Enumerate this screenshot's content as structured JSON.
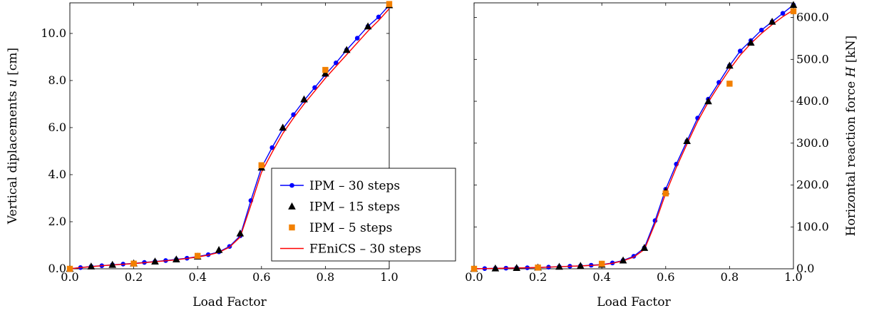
{
  "chart_data": [
    {
      "type": "line",
      "xlabel": "Load Factor",
      "ylabel": "Vertical diplacements u [cm]",
      "ylabel_parts": {
        "prefix": "Vertical diplacements ",
        "var": "u",
        "unit": " [cm]"
      },
      "xlim": [
        0.0,
        1.0
      ],
      "ylim": [
        0.0,
        11.3
      ],
      "xticks": [
        "0.0",
        "0.2",
        "0.4",
        "0.6",
        "0.8",
        "1.0"
      ],
      "xtick_values": [
        0.0,
        0.2,
        0.4,
        0.6,
        0.8,
        1.0
      ],
      "yticks": [
        "0.0",
        "2.0",
        "4.0",
        "6.0",
        "8.0",
        "10.0"
      ],
      "ytick_values": [
        0.0,
        2.0,
        4.0,
        6.0,
        8.0,
        10.0
      ],
      "yaxis_side": "left",
      "grid": false,
      "legend_position": "lower-right",
      "legend": [
        {
          "label": "IPM – 30 steps",
          "color": "#0000ff",
          "marker": "circle",
          "line": true
        },
        {
          "label": "IPM – 15 steps",
          "color": "#000000",
          "marker": "triangle",
          "line": false
        },
        {
          "label": "IPM – 5 steps",
          "color": "#f28000",
          "marker": "square",
          "line": false
        },
        {
          "label": "FEniCS – 30 steps",
          "color": "#ff0000",
          "marker": "none",
          "line": true
        }
      ],
      "series": [
        {
          "name": "IPM – 30 steps",
          "color": "#0000ff",
          "marker": "circle",
          "line": true,
          "x": [
            0.0,
            0.0333,
            0.0667,
            0.1,
            0.1333,
            0.1667,
            0.2,
            0.2333,
            0.2667,
            0.3,
            0.3333,
            0.3667,
            0.4,
            0.4333,
            0.4667,
            0.5,
            0.5333,
            0.5667,
            0.6,
            0.6333,
            0.6667,
            0.7,
            0.7333,
            0.7667,
            0.8,
            0.8333,
            0.8667,
            0.9,
            0.9333,
            0.9667,
            1.0
          ],
          "y": [
            0.0,
            0.05,
            0.1,
            0.13,
            0.17,
            0.2,
            0.23,
            0.27,
            0.31,
            0.35,
            0.4,
            0.45,
            0.52,
            0.6,
            0.72,
            0.95,
            1.4,
            2.9,
            4.3,
            5.15,
            5.95,
            6.55,
            7.15,
            7.7,
            8.25,
            8.75,
            9.3,
            9.8,
            10.3,
            10.7,
            11.2
          ]
        },
        {
          "name": "IPM – 15 steps",
          "color": "#000000",
          "marker": "triangle",
          "line": false,
          "x": [
            0.0,
            0.0667,
            0.1333,
            0.2,
            0.2667,
            0.3333,
            0.4,
            0.4667,
            0.5333,
            0.6,
            0.6667,
            0.7333,
            0.8,
            0.8667,
            0.9333,
            1.0
          ],
          "y": [
            0.0,
            0.1,
            0.17,
            0.23,
            0.31,
            0.4,
            0.52,
            0.8,
            1.5,
            4.3,
            6.0,
            7.2,
            8.3,
            9.3,
            10.3,
            11.2
          ]
        },
        {
          "name": "IPM – 5 steps",
          "color": "#f28000",
          "marker": "square",
          "line": false,
          "x": [
            0.0,
            0.2,
            0.4,
            0.6,
            0.8,
            1.0
          ],
          "y": [
            0.0,
            0.22,
            0.55,
            4.4,
            8.45,
            11.25
          ]
        },
        {
          "name": "FEniCS – 30 steps",
          "color": "#ff0000",
          "marker": "none",
          "line": true,
          "x": [
            0.0,
            0.0333,
            0.0667,
            0.1,
            0.1333,
            0.1667,
            0.2,
            0.2333,
            0.2667,
            0.3,
            0.3333,
            0.3667,
            0.4,
            0.4333,
            0.4667,
            0.5,
            0.5333,
            0.5667,
            0.6,
            0.6333,
            0.6667,
            0.7,
            0.7333,
            0.7667,
            0.8,
            0.8333,
            0.8667,
            0.9,
            0.9333,
            0.9667,
            1.0
          ],
          "y": [
            0.0,
            0.05,
            0.09,
            0.13,
            0.16,
            0.19,
            0.22,
            0.26,
            0.3,
            0.34,
            0.38,
            0.44,
            0.5,
            0.58,
            0.7,
            0.92,
            1.35,
            2.7,
            4.1,
            4.95,
            5.75,
            6.4,
            7.0,
            7.55,
            8.1,
            8.6,
            9.1,
            9.6,
            10.1,
            10.55,
            11.05
          ]
        }
      ]
    },
    {
      "type": "line",
      "xlabel": "Load Factor",
      "ylabel": "Horizontal reaction force H [kN]",
      "ylabel_parts": {
        "prefix": "Horizontal reaction force ",
        "var": "H",
        "unit": " [kN]"
      },
      "xlim": [
        0.0,
        1.0
      ],
      "ylim": [
        0.0,
        635.0
      ],
      "xticks": [
        "0.0",
        "0.2",
        "0.4",
        "0.6",
        "0.8",
        "1.0"
      ],
      "xtick_values": [
        0.0,
        0.2,
        0.4,
        0.6,
        0.8,
        1.0
      ],
      "yticks": [
        "0.0",
        "100.0",
        "200.0",
        "300.0",
        "400.0",
        "500.0",
        "600.0"
      ],
      "ytick_values": [
        0.0,
        100.0,
        200.0,
        300.0,
        400.0,
        500.0,
        600.0
      ],
      "yaxis_side": "right",
      "grid": false,
      "series": [
        {
          "name": "IPM – 30 steps",
          "color": "#0000ff",
          "marker": "circle",
          "line": true,
          "x": [
            0.0,
            0.0333,
            0.0667,
            0.1,
            0.1333,
            0.1667,
            0.2,
            0.2333,
            0.2667,
            0.3,
            0.3333,
            0.3667,
            0.4,
            0.4333,
            0.4667,
            0.5,
            0.5333,
            0.5667,
            0.6,
            0.6333,
            0.6667,
            0.7,
            0.7333,
            0.7667,
            0.8,
            0.8333,
            0.8667,
            0.9,
            0.9333,
            0.9667,
            1.0
          ],
          "y": [
            0.0,
            0.5,
            1.0,
            1.5,
            2.0,
            2.5,
            3.0,
            4.0,
            5.0,
            6.0,
            7.0,
            8.5,
            10.0,
            14.0,
            20.0,
            30.0,
            50.0,
            115.0,
            190.0,
            250.0,
            305.0,
            360.0,
            405.0,
            445.0,
            485.0,
            520.0,
            545.0,
            570.0,
            590.0,
            610.0,
            630.0
          ]
        },
        {
          "name": "IPM – 15 steps",
          "color": "#000000",
          "marker": "triangle",
          "line": false,
          "x": [
            0.0,
            0.0667,
            0.1333,
            0.2,
            0.2667,
            0.3333,
            0.4,
            0.4667,
            0.5333,
            0.6,
            0.6667,
            0.7333,
            0.8,
            0.8667,
            0.9333,
            1.0
          ],
          "y": [
            0.0,
            1.0,
            2.0,
            3.0,
            5.0,
            7.0,
            10.0,
            20.0,
            50.0,
            185.0,
            305.0,
            400.0,
            485.0,
            540.0,
            590.0,
            630.0
          ]
        },
        {
          "name": "IPM – 5 steps",
          "color": "#f28000",
          "marker": "square",
          "line": false,
          "x": [
            0.0,
            0.2,
            0.4,
            0.6,
            0.8,
            1.0
          ],
          "y": [
            0.0,
            3.0,
            12.0,
            180.0,
            442.0,
            615.0
          ]
        },
        {
          "name": "FEniCS – 30 steps",
          "color": "#ff0000",
          "marker": "none",
          "line": true,
          "x": [
            0.0,
            0.0333,
            0.0667,
            0.1,
            0.1333,
            0.1667,
            0.2,
            0.2333,
            0.2667,
            0.3,
            0.3333,
            0.3667,
            0.4,
            0.4333,
            0.4667,
            0.5,
            0.5333,
            0.5667,
            0.6,
            0.6333,
            0.6667,
            0.7,
            0.7333,
            0.7667,
            0.8,
            0.8333,
            0.8667,
            0.9,
            0.9333,
            0.9667,
            1.0
          ],
          "y": [
            0.0,
            0.5,
            1.0,
            1.5,
            2.0,
            2.5,
            3.0,
            4.0,
            5.0,
            6.0,
            7.0,
            8.0,
            9.5,
            13.0,
            19.0,
            28.0,
            46.0,
            108.0,
            180.0,
            242.0,
            298.0,
            352.0,
            398.0,
            438.0,
            476.0,
            510.0,
            538.0,
            562.0,
            583.0,
            602.0,
            618.0
          ]
        }
      ]
    }
  ]
}
